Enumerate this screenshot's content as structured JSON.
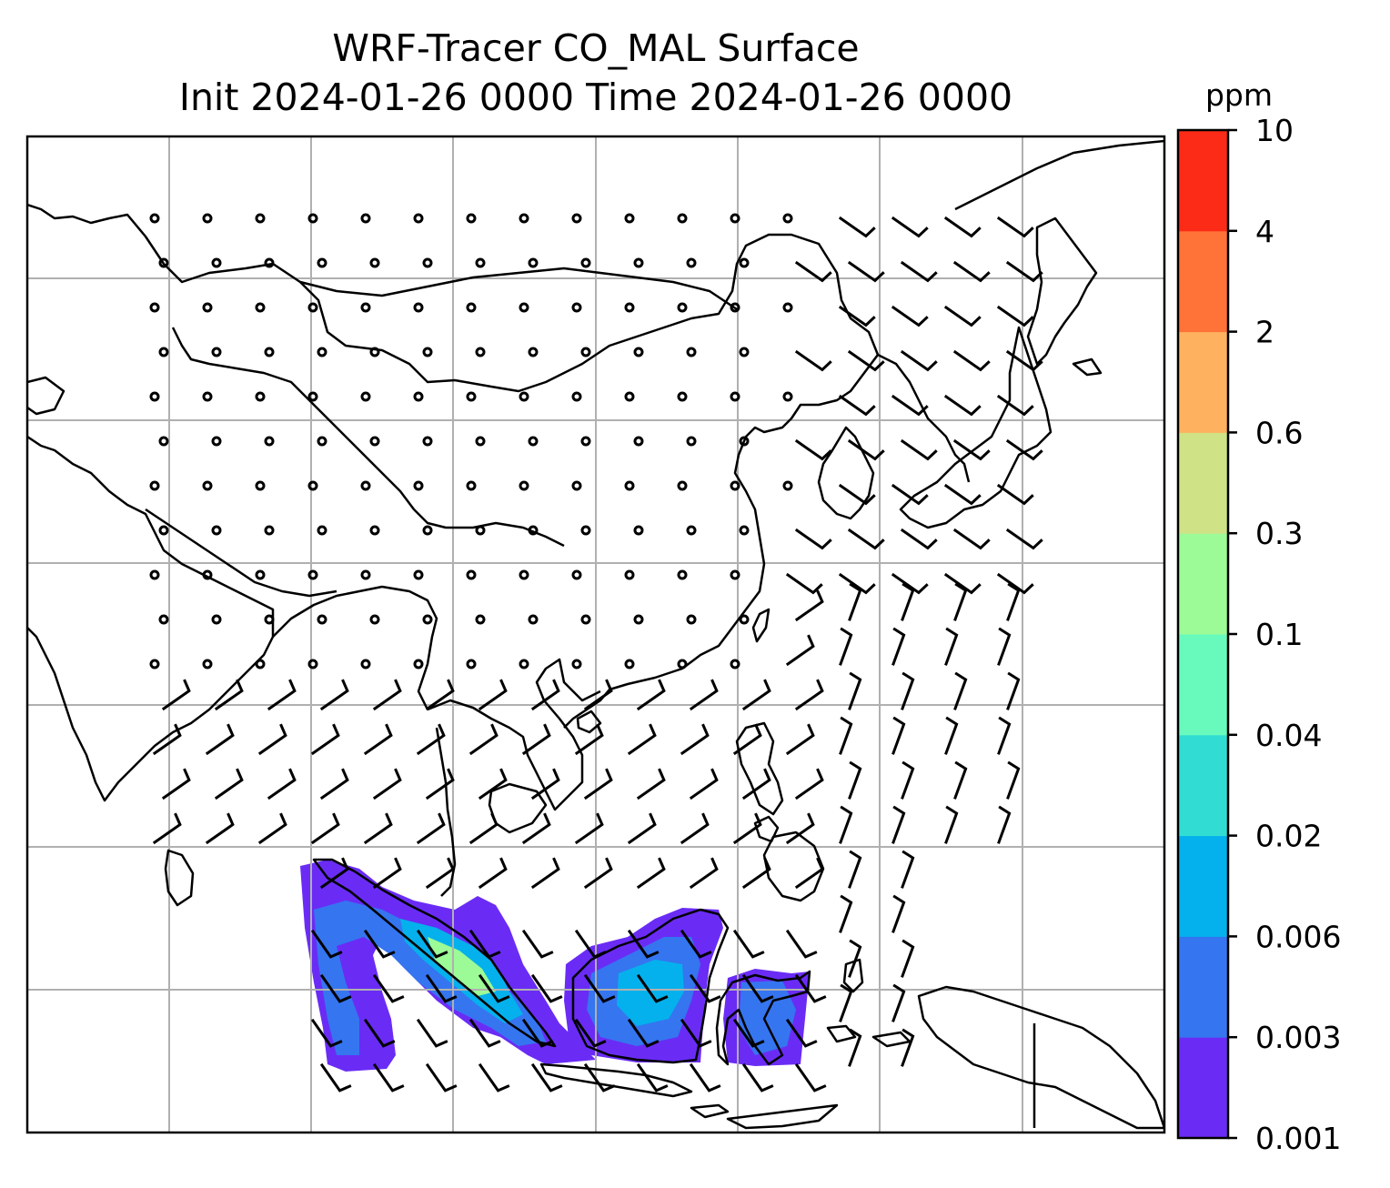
{
  "title": {
    "line1": "WRF-Tracer CO_MAL Surface",
    "line2": "Init 2024-01-26 0000 Time 2024-01-26 0000"
  },
  "colorbar": {
    "unit": "ppm",
    "levels": [
      "0.001",
      "0.003",
      "0.006",
      "0.02",
      "0.04",
      "0.1",
      "0.3",
      "0.6",
      "2",
      "4",
      "10"
    ],
    "colors": [
      "#6a2cf5",
      "#3575f0",
      "#04b1ec",
      "#31ddd3",
      "#68f9bd",
      "#9cfa97",
      "#cfe286",
      "#feb15e",
      "#ff7238",
      "#fb2b17"
    ]
  },
  "map": {
    "gridlines": true,
    "coastline_color": "#000000",
    "grid_color": "#b0b0b0",
    "field_colors": {
      "low": "#6a2cf5",
      "mid": "#3575f0",
      "high": "#04b1ec",
      "peak": "#31ddd3",
      "max": "#9cfa97"
    }
  }
}
